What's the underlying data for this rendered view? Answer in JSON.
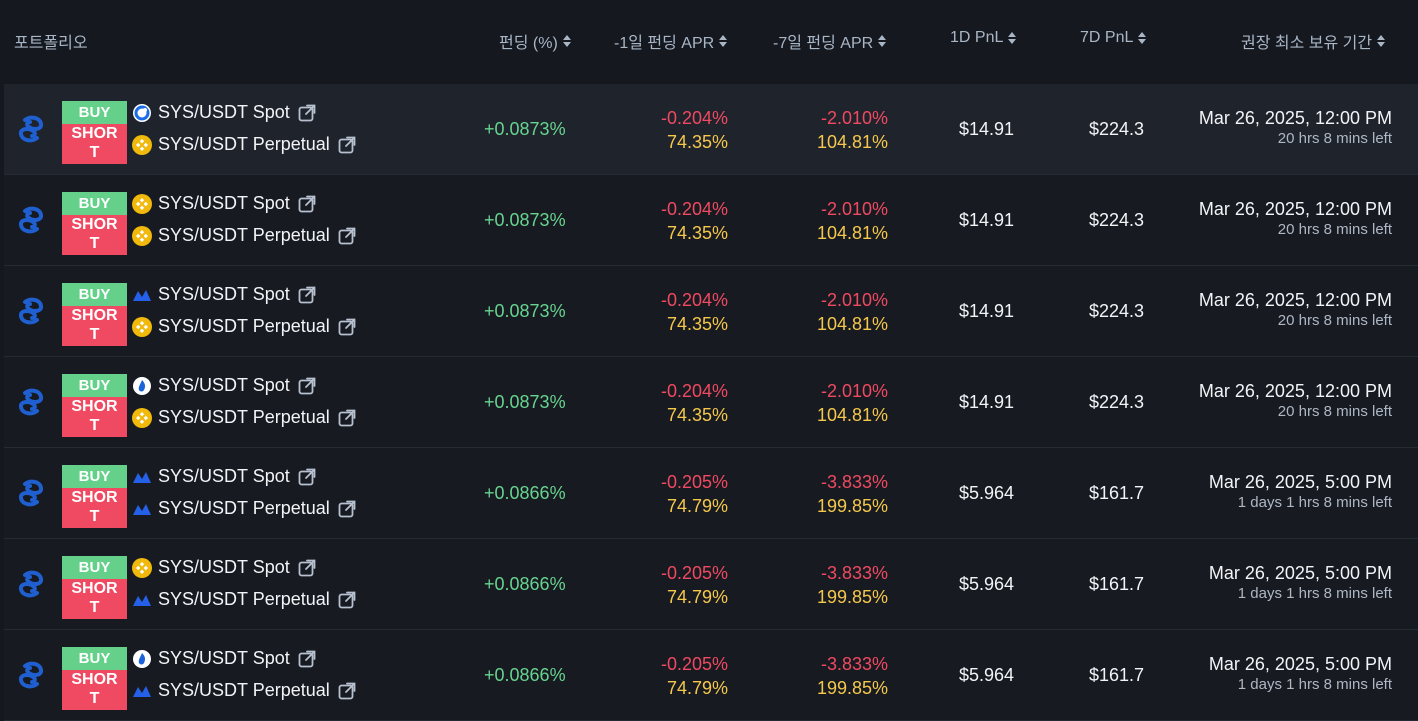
{
  "header": {
    "portfolio": "포트폴리오",
    "funding": "펀딩 (%)",
    "apr_1d": "-1일 펀딩 APR",
    "apr_7d": "-7일 펀딩 APR",
    "pnl_1d": "1D PnL",
    "pnl_7d": "7D PnL",
    "hold": "권장 최소 보유 기간"
  },
  "rows": [
    {
      "buy": "BUY",
      "short_a": "SHOR",
      "short_b": "T",
      "pair1": "SYS/USDT Spot",
      "pair1_exchange": "okx-icon",
      "pair2": "SYS/USDT Perpetual",
      "pair2_exchange": "binance-icon",
      "funding": "+0.0873%",
      "apr1_neg": "-0.204%",
      "apr1_pos": "74.35%",
      "apr7_neg": "-2.010%",
      "apr7_pos": "104.81%",
      "pnl1d": "$14.91",
      "pnl7d": "$224.3",
      "date": "Mar 26, 2025, 12:00 PM",
      "left": "20 hrs 8 mins left"
    },
    {
      "buy": "BUY",
      "short_a": "SHOR",
      "short_b": "T",
      "pair1": "SYS/USDT Spot",
      "pair1_exchange": "binance-icon",
      "pair2": "SYS/USDT Perpetual",
      "pair2_exchange": "binance-icon",
      "funding": "+0.0873%",
      "apr1_neg": "-0.204%",
      "apr1_pos": "74.35%",
      "apr7_neg": "-2.010%",
      "apr7_pos": "104.81%",
      "pnl1d": "$14.91",
      "pnl7d": "$224.3",
      "date": "Mar 26, 2025, 12:00 PM",
      "left": "20 hrs 8 mins left"
    },
    {
      "buy": "BUY",
      "short_a": "SHOR",
      "short_b": "T",
      "pair1": "SYS/USDT Spot",
      "pair1_exchange": "upbit-icon",
      "pair2": "SYS/USDT Perpetual",
      "pair2_exchange": "binance-icon",
      "funding": "+0.0873%",
      "apr1_neg": "-0.204%",
      "apr1_pos": "74.35%",
      "apr7_neg": "-2.010%",
      "apr7_pos": "104.81%",
      "pnl1d": "$14.91",
      "pnl7d": "$224.3",
      "date": "Mar 26, 2025, 12:00 PM",
      "left": "20 hrs 8 mins left"
    },
    {
      "buy": "BUY",
      "short_a": "SHOR",
      "short_b": "T",
      "pair1": "SYS/USDT Spot",
      "pair1_exchange": "huobi-icon",
      "pair2": "SYS/USDT Perpetual",
      "pair2_exchange": "binance-icon",
      "funding": "+0.0873%",
      "apr1_neg": "-0.204%",
      "apr1_pos": "74.35%",
      "apr7_neg": "-2.010%",
      "apr7_pos": "104.81%",
      "pnl1d": "$14.91",
      "pnl7d": "$224.3",
      "date": "Mar 26, 2025, 12:00 PM",
      "left": "20 hrs 8 mins left"
    },
    {
      "buy": "BUY",
      "short_a": "SHOR",
      "short_b": "T",
      "pair1": "SYS/USDT Spot",
      "pair1_exchange": "upbit-icon",
      "pair2": "SYS/USDT Perpetual",
      "pair2_exchange": "upbit-icon",
      "funding": "+0.0866%",
      "apr1_neg": "-0.205%",
      "apr1_pos": "74.79%",
      "apr7_neg": "-3.833%",
      "apr7_pos": "199.85%",
      "pnl1d": "$5.964",
      "pnl7d": "$161.7",
      "date": "Mar 26, 2025, 5:00 PM",
      "left": "1 days 1 hrs 8 mins left"
    },
    {
      "buy": "BUY",
      "short_a": "SHOR",
      "short_b": "T",
      "pair1": "SYS/USDT Spot",
      "pair1_exchange": "binance-icon",
      "pair2": "SYS/USDT Perpetual",
      "pair2_exchange": "upbit-icon",
      "funding": "+0.0866%",
      "apr1_neg": "-0.205%",
      "apr1_pos": "74.79%",
      "apr7_neg": "-3.833%",
      "apr7_pos": "199.85%",
      "pnl1d": "$5.964",
      "pnl7d": "$161.7",
      "date": "Mar 26, 2025, 5:00 PM",
      "left": "1 days 1 hrs 8 mins left"
    },
    {
      "buy": "BUY",
      "short_a": "SHOR",
      "short_b": "T",
      "pair1": "SYS/USDT Spot",
      "pair1_exchange": "huobi-icon",
      "pair2": "SYS/USDT Perpetual",
      "pair2_exchange": "upbit-icon",
      "funding": "+0.0866%",
      "apr1_neg": "-0.205%",
      "apr1_pos": "74.79%",
      "apr7_neg": "-3.833%",
      "apr7_pos": "199.85%",
      "pnl1d": "$5.964",
      "pnl7d": "$161.7",
      "date": "Mar 26, 2025, 5:00 PM",
      "left": "1 days 1 hrs 8 mins left"
    }
  ]
}
